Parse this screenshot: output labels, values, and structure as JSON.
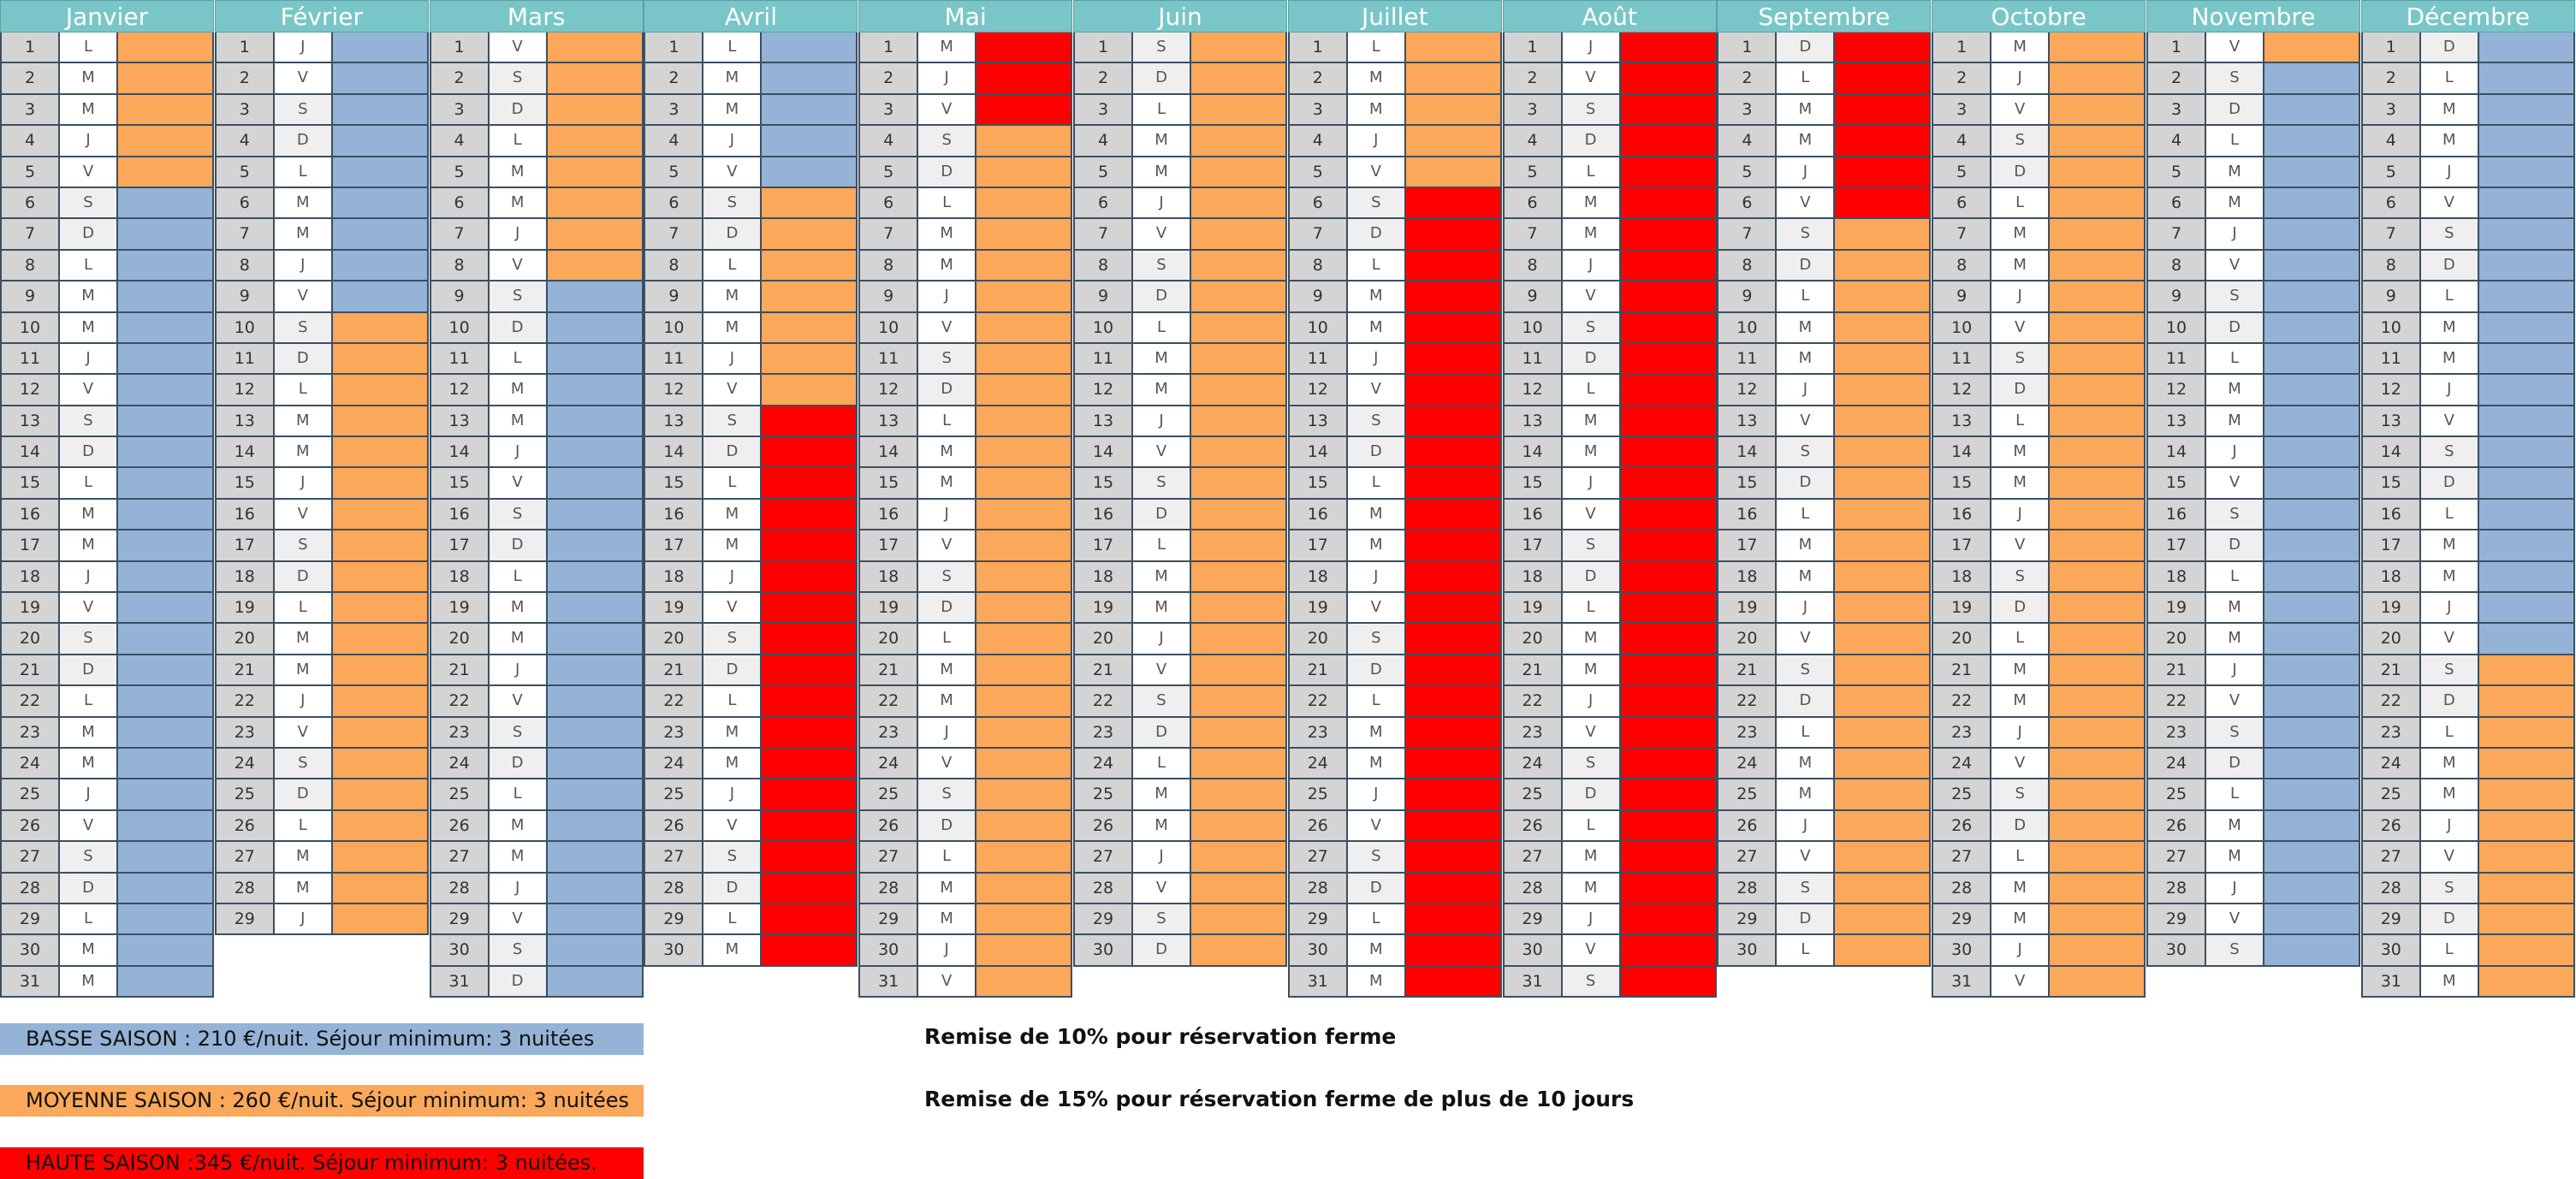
{
  "colors": {
    "basse": "#95b3d7",
    "moyenne": "#fba85a",
    "haute": "#ff0000",
    "header": "#79c6c8"
  },
  "months": [
    {
      "name": "Janvier",
      "days": 31,
      "start": "L",
      "bands": [
        [
          1,
          5,
          "moyenne"
        ],
        [
          6,
          31,
          "basse"
        ]
      ]
    },
    {
      "name": "Février",
      "days": 29,
      "start": "J",
      "bands": [
        [
          1,
          9,
          "basse"
        ],
        [
          10,
          29,
          "moyenne"
        ]
      ]
    },
    {
      "name": "Mars",
      "days": 31,
      "start": "V",
      "bands": [
        [
          1,
          8,
          "moyenne"
        ],
        [
          9,
          31,
          "basse"
        ]
      ]
    },
    {
      "name": "Avril",
      "days": 30,
      "start": "L",
      "bands": [
        [
          1,
          5,
          "basse"
        ],
        [
          6,
          12,
          "moyenne"
        ],
        [
          13,
          30,
          "haute"
        ]
      ]
    },
    {
      "name": "Mai",
      "days": 31,
      "start": "M",
      "bands": [
        [
          1,
          3,
          "haute"
        ],
        [
          4,
          31,
          "moyenne"
        ]
      ]
    },
    {
      "name": "Juin",
      "days": 30,
      "start": "S",
      "bands": [
        [
          1,
          30,
          "moyenne"
        ]
      ]
    },
    {
      "name": "Juillet",
      "days": 31,
      "start": "L",
      "bands": [
        [
          1,
          5,
          "moyenne"
        ],
        [
          6,
          31,
          "haute"
        ]
      ]
    },
    {
      "name": "Août",
      "days": 31,
      "start": "J",
      "bands": [
        [
          1,
          31,
          "haute"
        ]
      ]
    },
    {
      "name": "Septembre",
      "days": 30,
      "start": "D",
      "bands": [
        [
          1,
          6,
          "haute"
        ],
        [
          7,
          30,
          "moyenne"
        ]
      ]
    },
    {
      "name": "Octobre",
      "days": 31,
      "start": "M",
      "bands": [
        [
          1,
          31,
          "moyenne"
        ]
      ]
    },
    {
      "name": "Novembre",
      "days": 30,
      "start": "V",
      "bands": [
        [
          1,
          1,
          "moyenne"
        ],
        [
          2,
          30,
          "basse"
        ]
      ]
    },
    {
      "name": "Décembre",
      "days": 31,
      "start": "D",
      "bands": [
        [
          1,
          20,
          "basse"
        ],
        [
          21,
          31,
          "moyenne"
        ]
      ]
    }
  ],
  "legend": {
    "basse": "BASSE SAISON : 210 €/nuit.  Séjour minimum: 3 nuitées",
    "moyenne": "MOYENNE SAISON : 260 €/nuit. Séjour minimum: 3 nuitées",
    "haute": "HAUTE SAISON :345 €/nuit.  Séjour minimum: 3 nuitées."
  },
  "notes": {
    "remise10": "Remise de 10% pour réservation ferme",
    "remise15": "Remise de 15% pour réservation ferme de plus de 10 jours"
  }
}
